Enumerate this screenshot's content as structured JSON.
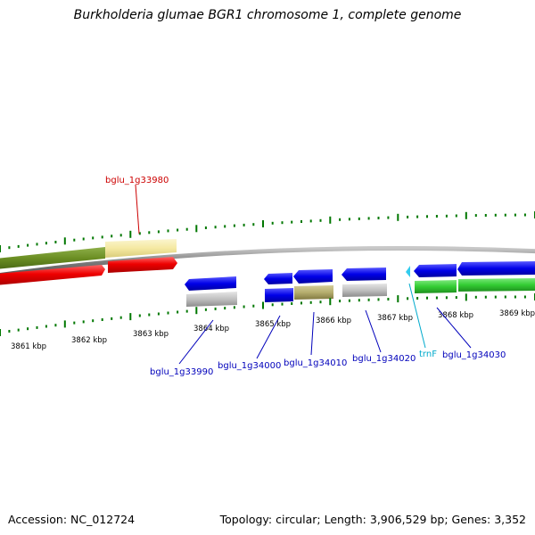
{
  "title": "Burkholderia glumae BGR1 chromosome 1, complete genome",
  "footer": {
    "accession": "Accession: NC_012724",
    "topology": "Topology: circular; Length: 3,906,529 bp; Genes: 3,352"
  },
  "colors": {
    "cds_forward": "#0000e8",
    "cds_reverse_dark": "#ee0000",
    "gene_olive": "#6b8e23",
    "gene_pale": "#f5e9a2",
    "gene_grey": "#c0c0c0",
    "gene_khaki": "#b5ad6e",
    "gene_green": "#33cc33",
    "tick": "#007700",
    "label_red": "#cc0000",
    "label_blue": "#0000bb",
    "label_cyan": "#00aacc"
  },
  "scale_labels": [
    "3861 kbp",
    "3862 kbp",
    "3863 kbp",
    "3864 kbp",
    "3865 kbp",
    "3866 kbp",
    "3867 kbp",
    "3868 kbp",
    "3869 kbp"
  ],
  "gene_labels": {
    "g33980": "bglu_1g33980",
    "g33990": "bglu_1g33990",
    "g34000": "bglu_1g34000",
    "g34010": "bglu_1g34010",
    "g34020": "bglu_1g34020",
    "trnF": "trnF",
    "g34030": "bglu_1g34030"
  }
}
